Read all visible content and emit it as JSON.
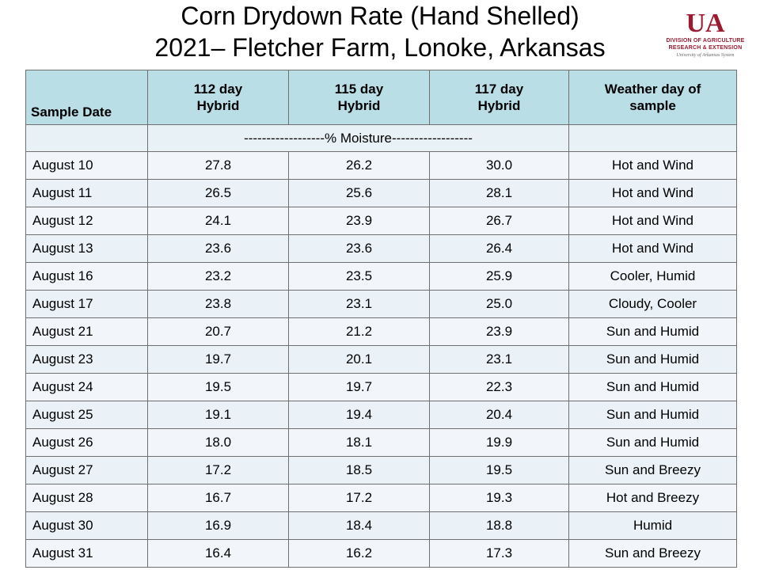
{
  "title": {
    "line1": "Corn Drydown Rate (Hand Shelled)",
    "line2": "2021– Fletcher Farm, Lonoke, Arkansas"
  },
  "logo": {
    "mark": "UA",
    "line1": "DIVISION OF AGRICULTURE",
    "line2": "RESEARCH & EXTENSION",
    "line3": "University of Arkansas System"
  },
  "table": {
    "headers": {
      "sample_date": "Sample Date",
      "h112_line1": "112 day",
      "h112_line2": "Hybrid",
      "h115_line1": "115 day",
      "h115_line2": "Hybrid",
      "h117_line1": "117 day",
      "h117_line2": "Hybrid",
      "weather_line1": "Weather day of",
      "weather_line2": "sample"
    },
    "unit_row": "------------------% Moisture------------------",
    "rows": [
      {
        "date": "August 10",
        "h112": "27.8",
        "h115": "26.2",
        "h117": "30.0",
        "weather": "Hot and Wind"
      },
      {
        "date": "August 11",
        "h112": "26.5",
        "h115": "25.6",
        "h117": "28.1",
        "weather": "Hot and Wind"
      },
      {
        "date": "August 12",
        "h112": "24.1",
        "h115": "23.9",
        "h117": "26.7",
        "weather": "Hot and Wind"
      },
      {
        "date": "August 13",
        "h112": "23.6",
        "h115": "23.6",
        "h117": "26.4",
        "weather": "Hot and Wind"
      },
      {
        "date": "August 16",
        "h112": "23.2",
        "h115": "23.5",
        "h117": "25.9",
        "weather": "Cooler, Humid"
      },
      {
        "date": "August 17",
        "h112": "23.8",
        "h115": "23.1",
        "h117": "25.0",
        "weather": "Cloudy, Cooler"
      },
      {
        "date": "August 21",
        "h112": "20.7",
        "h115": "21.2",
        "h117": "23.9",
        "weather": "Sun and Humid"
      },
      {
        "date": "August 23",
        "h112": "19.7",
        "h115": "20.1",
        "h117": "23.1",
        "weather": "Sun and Humid"
      },
      {
        "date": "August 24",
        "h112": "19.5",
        "h115": "19.7",
        "h117": "22.3",
        "weather": "Sun and Humid"
      },
      {
        "date": "August 25",
        "h112": "19.1",
        "h115": "19.4",
        "h117": "20.4",
        "weather": "Sun and Humid"
      },
      {
        "date": "August 26",
        "h112": "18.0",
        "h115": "18.1",
        "h117": "19.9",
        "weather": "Sun and Humid"
      },
      {
        "date": "August 27",
        "h112": "17.2",
        "h115": "18.5",
        "h117": "19.5",
        "weather": "Sun and Breezy"
      },
      {
        "date": "August 28",
        "h112": "16.7",
        "h115": "17.2",
        "h117": "19.3",
        "weather": "Hot and Breezy"
      },
      {
        "date": "August 30",
        "h112": "16.9",
        "h115": "18.4",
        "h117": "18.8",
        "weather": "Humid"
      },
      {
        "date": "August 31",
        "h112": "16.4",
        "h115": "16.2",
        "h117": "17.3",
        "weather": "Sun and Breezy"
      }
    ]
  },
  "colors": {
    "header_bg": "#b9dee6",
    "row_bg_a": "#eaf2f7",
    "row_bg_b": "#f2f6fa",
    "logo_red": "#9b1b30"
  }
}
